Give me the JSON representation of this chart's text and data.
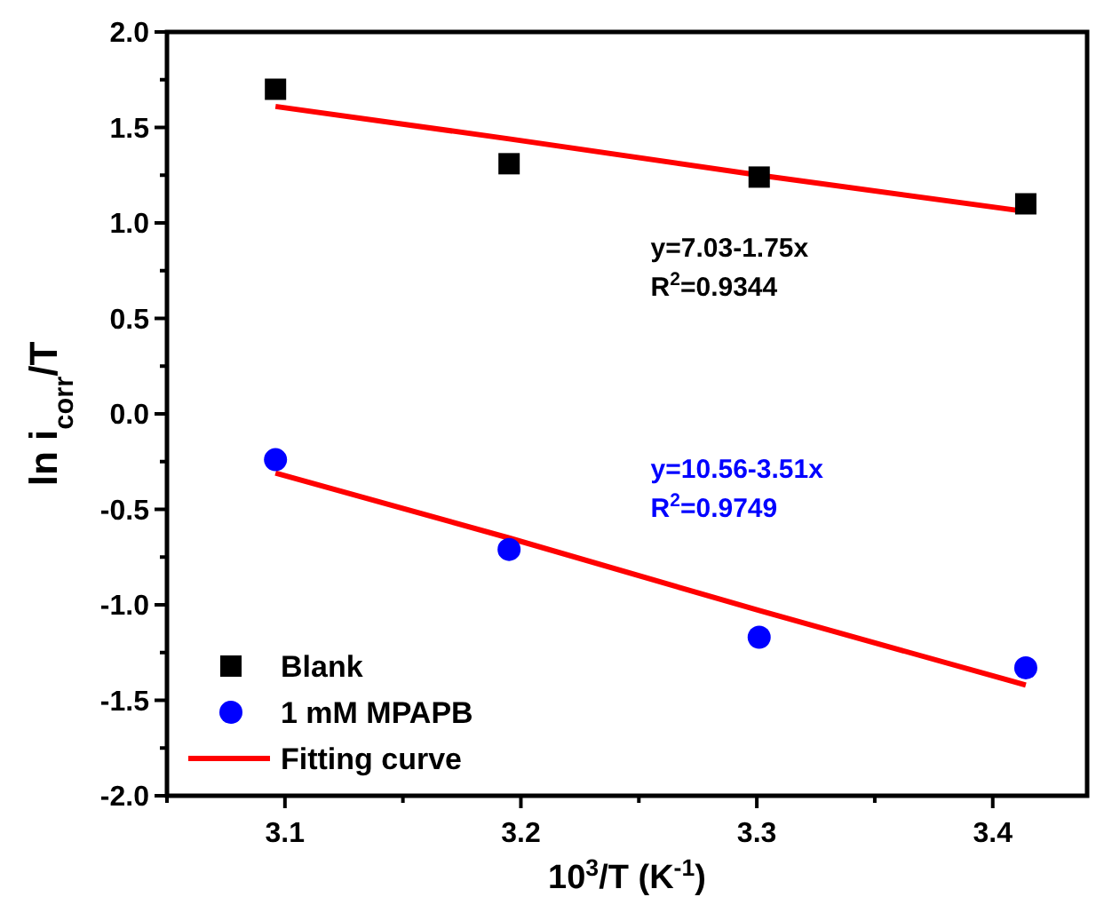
{
  "chart_data": {
    "type": "scatter",
    "xlabel": "10$^{3}$/T (K$^{-1}$)",
    "ylabel": "ln i$_{corr}$/T",
    "xlim": [
      3.05,
      3.44
    ],
    "ylim": [
      -2.0,
      2.0
    ],
    "xticks": [
      {
        "value": 3.05,
        "label": null
      },
      3.1,
      {
        "value": 3.15,
        "label": null
      },
      3.2,
      {
        "value": 3.25,
        "label": null
      },
      3.3,
      {
        "value": 3.35,
        "label": null
      },
      3.4
    ],
    "yticks": [
      {
        "value": -2,
        "label": "-2.0"
      },
      {
        "value": -1.75,
        "label": null
      },
      -1.5,
      {
        "value": -1.25,
        "label": null
      },
      {
        "value": -1,
        "label": "-1.0"
      },
      {
        "value": -0.75,
        "label": null
      },
      -0.5,
      {
        "value": -0.25,
        "label": null
      },
      {
        "value": 0,
        "label": "0.0"
      },
      {
        "value": 0.25,
        "label": null
      },
      0.5,
      {
        "value": 0.75,
        "label": null
      },
      {
        "value": 1,
        "label": "1.0"
      },
      {
        "value": 1.25,
        "label": null
      },
      1.5,
      {
        "value": 1.75,
        "label": null
      },
      {
        "value": 2,
        "label": "2.0"
      }
    ],
    "x": [
      3.096,
      3.195,
      3.301,
      3.414
    ],
    "series": [
      {
        "name": "Blank",
        "color": "#000000",
        "marker": "square",
        "values": [
          1.7,
          1.31,
          1.24,
          1.1
        ]
      },
      {
        "name": "1 mM MPAPB",
        "color": "#0000ff",
        "marker": "circle",
        "values": [
          -0.24,
          -0.71,
          -1.17,
          -1.33
        ]
      },
      {
        "name": "Fitting curve",
        "type": "line",
        "color": "#ff0000",
        "values": [
          1.61,
          1.44,
          1.25,
          1.06
        ]
      },
      {
        "type": "line",
        "color": "#ff0000",
        "values": [
          -0.31,
          -0.65,
          -1.03,
          -1.42
        ]
      }
    ],
    "annotations": [
      "y=7.03-1.75x",
      "R$^{2}$=0.9344",
      "y=10.56-3.51x",
      "R$^{2}$=0.9749"
    ],
    "legend": "bottom left",
    "grid": false
  }
}
